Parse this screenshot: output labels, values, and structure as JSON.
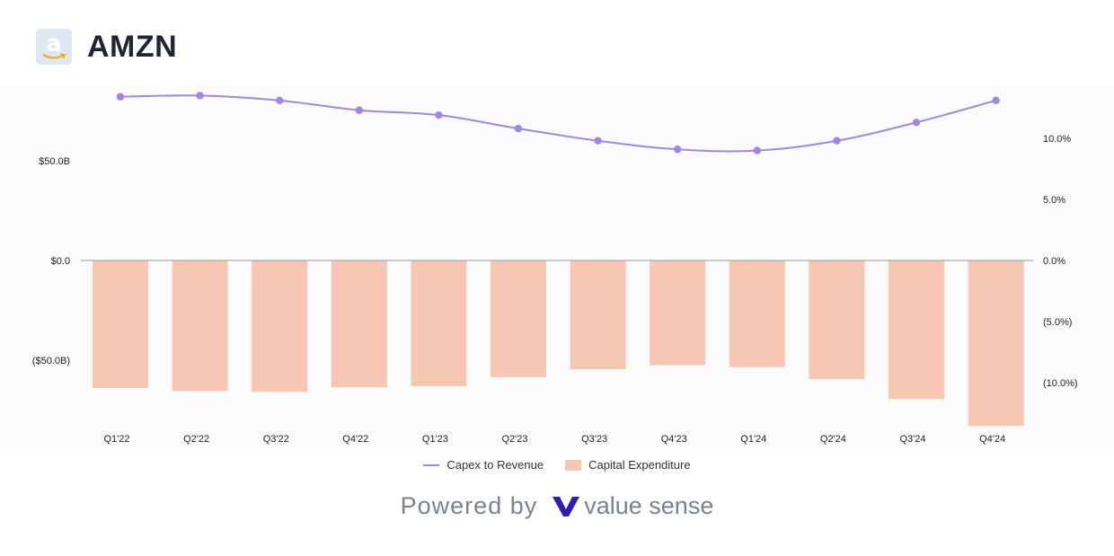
{
  "header": {
    "ticker": "AMZN",
    "logo_icon": "amazon-logo-icon"
  },
  "colors": {
    "line": "#a187e0",
    "bar": "#f8c7b3",
    "plot_bg": "#fbfbfd",
    "brand": "#2a1fb3"
  },
  "chart_data": {
    "type": "bar",
    "title": "",
    "categories": [
      "Q1'22",
      "Q2'22",
      "Q3'22",
      "Q4'22",
      "Q1'23",
      "Q2'23",
      "Q3'23",
      "Q4'23",
      "Q1'24",
      "Q2'24",
      "Q3'24",
      "Q4'24"
    ],
    "series": [
      {
        "name": "Capital Expenditure",
        "type": "bar",
        "axis": "left",
        "values": [
          -64.0,
          -65.5,
          -66.0,
          -63.5,
          -63.0,
          -58.5,
          -54.5,
          -52.5,
          -53.5,
          -59.5,
          -69.5,
          -83.0
        ]
      },
      {
        "name": "Capex to Revenue",
        "type": "line",
        "axis": "right",
        "values": [
          13.4,
          13.5,
          13.1,
          12.3,
          11.9,
          10.8,
          9.8,
          9.1,
          9.0,
          9.8,
          11.3,
          13.1
        ]
      }
    ],
    "y_left": {
      "ticks": [
        50,
        0,
        -50
      ],
      "tick_labels": [
        "$50.0B",
        "$0.0",
        "($50.0B)"
      ],
      "range": [
        -83,
        86
      ]
    },
    "y_right": {
      "ticks": [
        10,
        5,
        0,
        -5,
        -10
      ],
      "tick_labels": [
        "10.0%",
        "5.0%",
        "0.0%",
        "(5.0%)",
        "(10.0%)"
      ],
      "range": [
        -13.5,
        14
      ]
    },
    "grid": false,
    "legend_position": "bottom-center"
  },
  "legend": {
    "line_label": "Capex to Revenue",
    "bar_label": "Capital Expenditure"
  },
  "footer": {
    "powered_by": "Powered by",
    "brand_name": "value sense",
    "brand_icon": "value-sense-v-icon"
  }
}
